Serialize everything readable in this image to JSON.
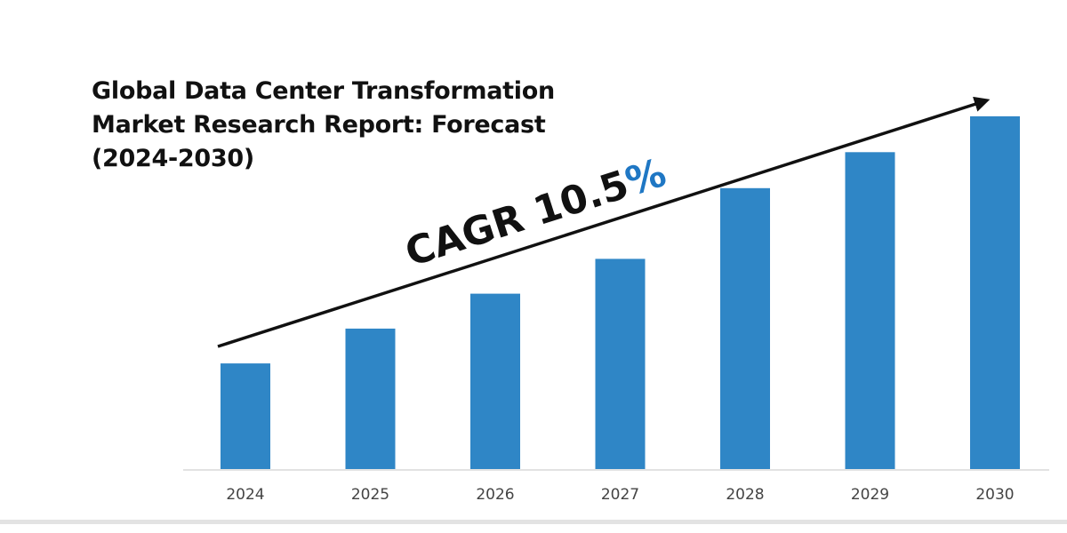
{
  "title_lines": [
    "Global Data Center Transformation",
    "Market Research Report: Forecast",
    "(2024-2030)"
  ],
  "cagr": {
    "prefix": "CAGR 10.5",
    "suffix": "%",
    "prefix_color": "#111111",
    "suffix_color": "#1f77c4"
  },
  "colors": {
    "bar": "#2f86c6",
    "axis": "#d9d9d9",
    "arrow": "#111111",
    "tick_label": "#444444"
  },
  "chart_data": {
    "type": "bar",
    "categories": [
      "2024",
      "2025",
      "2026",
      "2027",
      "2028",
      "2029",
      "2030"
    ],
    "values": [
      1.0,
      1.33,
      1.66,
      1.99,
      2.66,
      3.0,
      3.34
    ],
    "ylim": [
      0,
      3.6
    ],
    "xlabel": "",
    "ylabel": "",
    "grid": false,
    "annotation": "CAGR 10.5%"
  }
}
